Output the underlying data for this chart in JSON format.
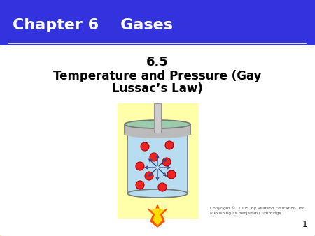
{
  "bg_color": "#ffffff",
  "header_bg": "#3333dd",
  "header_text": "Chapter 6    Gases",
  "header_text_color": "#ffffff",
  "slide_border_color": "#cc6600",
  "slide_bg": "#ffffff",
  "title_line1": "6.5",
  "title_line2": "Temperature and Pressure (Gay",
  "title_line3": "Lussac’s Law)",
  "copyright_text": "Copyright ©  2005  by Pearson Education, Inc.\nPublishing as Benjamin Cummings",
  "page_number": "1",
  "canister_bg": "#ffffaa",
  "canister_body_color": "#b8ddf0",
  "canister_rim_color": "#bbbbbb",
  "canister_top_color": "#99ccaa",
  "canister_border_color": "#777777",
  "piston_color": "#cccccc",
  "flame_orange": "#ff5500",
  "flame_yellow": "#ffdd00",
  "particle_color": "#ee2222",
  "particle_border": "#aa0000",
  "arrow_color": "#334488"
}
